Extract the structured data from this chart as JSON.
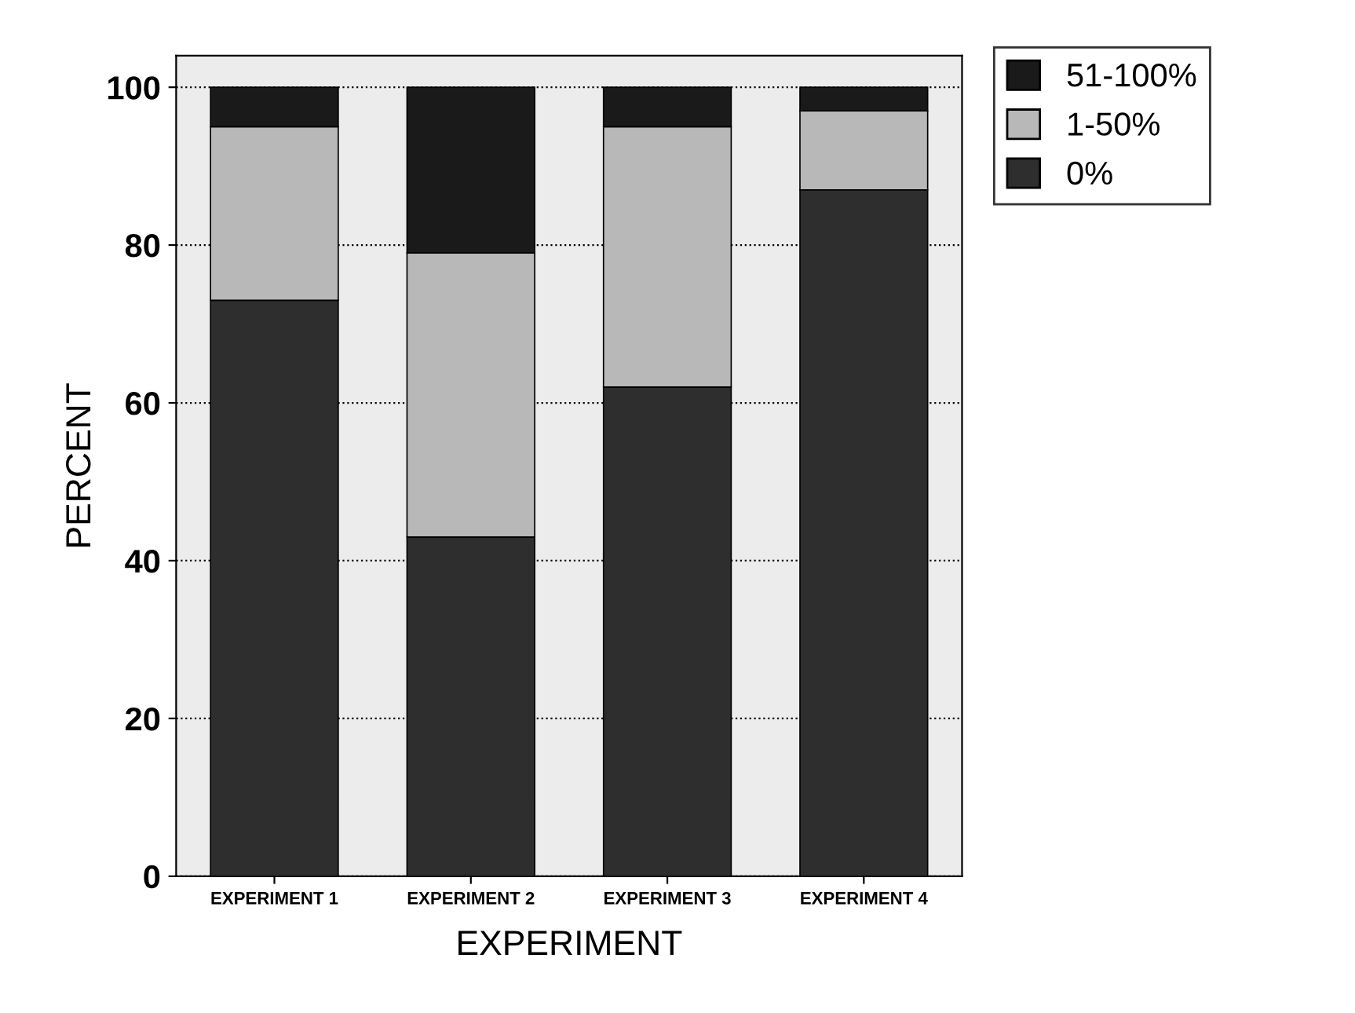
{
  "chart_data": {
    "type": "bar",
    "stacked": true,
    "xlabel": "EXPERIMENT",
    "ylabel": "PERCENT",
    "categories": [
      "EXPERIMENT 1",
      "EXPERIMENT 2",
      "EXPERIMENT 3",
      "EXPERIMENT 4"
    ],
    "series": [
      {
        "name": "0%",
        "color": "#2e2e2e",
        "values": [
          73,
          43,
          62,
          87
        ]
      },
      {
        "name": "1-50%",
        "color": "#b8b8b8",
        "values": [
          22,
          36,
          33,
          10
        ]
      },
      {
        "name": "51-100%",
        "color": "#1a1a1a",
        "values": [
          5,
          21,
          5,
          3
        ]
      }
    ],
    "ylim": [
      0,
      104
    ],
    "yticks": [
      0,
      20,
      40,
      60,
      80,
      100
    ],
    "grid": "y",
    "legend": "top right"
  }
}
